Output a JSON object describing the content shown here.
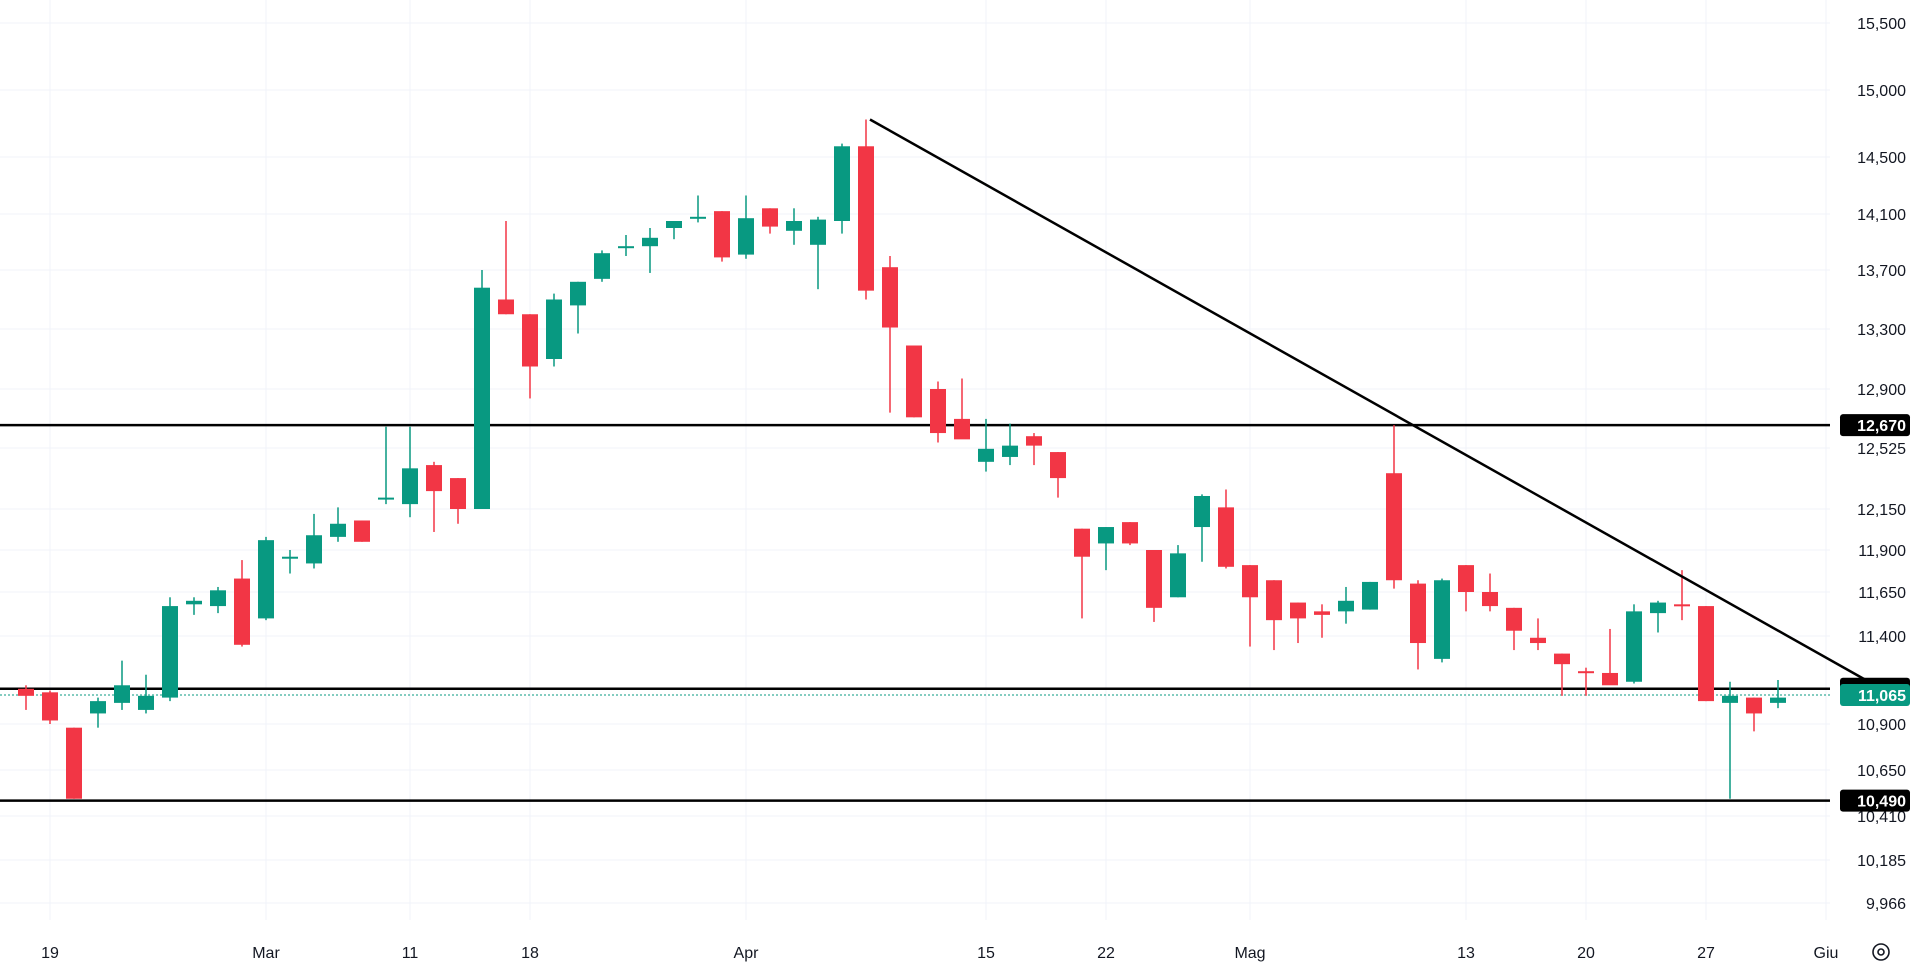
{
  "chart_data": {
    "type": "candlestick",
    "title": "",
    "xlabel": "",
    "ylabel": "",
    "y_ticks": [
      "15,500",
      "15,000",
      "14,500",
      "14,100",
      "13,700",
      "13,300",
      "12,900",
      "12,525",
      "12,150",
      "11,900",
      "11,650",
      "11,400",
      "10,900",
      "10,650",
      "10,410",
      "10,185",
      "9,966"
    ],
    "x_ticks": [
      "19",
      "Mar",
      "11",
      "18",
      "Apr",
      "15",
      "22",
      "Mag",
      "13",
      "20",
      "27",
      "Giu"
    ],
    "colors": {
      "up": "#089981",
      "down": "#f23645",
      "line": "#000000",
      "grid": "#f0f3fa"
    },
    "candles": [
      {
        "date": "Feb 16",
        "o": 11100,
        "h": 11120,
        "l": 10980,
        "c": 11060
      },
      {
        "date": "Feb 19",
        "o": 11080,
        "h": 11090,
        "l": 10900,
        "c": 10920
      },
      {
        "date": "Feb 20",
        "o": 10880,
        "h": 10880,
        "l": 10500,
        "c": 10500
      },
      {
        "date": "Feb 21",
        "o": 10960,
        "h": 11050,
        "l": 10880,
        "c": 11030
      },
      {
        "date": "Feb 22",
        "o": 11020,
        "h": 11260,
        "l": 10980,
        "c": 11120
      },
      {
        "date": "Feb 23",
        "o": 10980,
        "h": 11180,
        "l": 10960,
        "c": 11060
      },
      {
        "date": "Feb 26",
        "o": 11050,
        "h": 11620,
        "l": 11030,
        "c": 11570
      },
      {
        "date": "Feb 27",
        "o": 11580,
        "h": 11620,
        "l": 11520,
        "c": 11600
      },
      {
        "date": "Feb 28",
        "o": 11570,
        "h": 11680,
        "l": 11530,
        "c": 11660
      },
      {
        "date": "Feb 29",
        "o": 11730,
        "h": 11840,
        "l": 11340,
        "c": 11350
      },
      {
        "date": "Mar 1",
        "o": 11500,
        "h": 11980,
        "l": 11490,
        "c": 11960
      },
      {
        "date": "Mar 4",
        "o": 11860,
        "h": 11900,
        "l": 11760,
        "c": 11860
      },
      {
        "date": "Mar 5",
        "o": 11820,
        "h": 12120,
        "l": 11790,
        "c": 11990
      },
      {
        "date": "Mar 6",
        "o": 11980,
        "h": 12160,
        "l": 11950,
        "c": 12060
      },
      {
        "date": "Mar 7",
        "o": 12080,
        "h": 12080,
        "l": 11950,
        "c": 11950
      },
      {
        "date": "Mar 8",
        "o": 12220,
        "h": 12660,
        "l": 12180,
        "c": 12220
      },
      {
        "date": "Mar 11",
        "o": 12180,
        "h": 12660,
        "l": 12100,
        "c": 12400
      },
      {
        "date": "Mar 12",
        "o": 12420,
        "h": 12440,
        "l": 12010,
        "c": 12260
      },
      {
        "date": "Mar 13",
        "o": 12340,
        "h": 12340,
        "l": 12060,
        "c": 12150
      },
      {
        "date": "Mar 14",
        "o": 12150,
        "h": 13700,
        "l": 12150,
        "c": 13580
      },
      {
        "date": "Mar 15",
        "o": 13500,
        "h": 14050,
        "l": 13400,
        "c": 13400
      },
      {
        "date": "Mar 18",
        "o": 13400,
        "h": 13400,
        "l": 12840,
        "c": 13050
      },
      {
        "date": "Mar 19",
        "o": 13100,
        "h": 13540,
        "l": 13050,
        "c": 13500
      },
      {
        "date": "Mar 20",
        "o": 13460,
        "h": 13620,
        "l": 13270,
        "c": 13620
      },
      {
        "date": "Mar 21",
        "o": 13640,
        "h": 13840,
        "l": 13620,
        "c": 13820
      },
      {
        "date": "Mar 22",
        "o": 13860,
        "h": 13950,
        "l": 13800,
        "c": 13870
      },
      {
        "date": "Mar 25",
        "o": 13870,
        "h": 14000,
        "l": 13680,
        "c": 13930
      },
      {
        "date": "Mar 26",
        "o": 14000,
        "h": 14040,
        "l": 13920,
        "c": 14050
      },
      {
        "date": "Mar 27",
        "o": 14080,
        "h": 14230,
        "l": 14040,
        "c": 14080
      },
      {
        "date": "Mar 28",
        "o": 14120,
        "h": 14120,
        "l": 13760,
        "c": 13790
      },
      {
        "date": "Apr 1",
        "o": 13810,
        "h": 14230,
        "l": 13780,
        "c": 14070
      },
      {
        "date": "Apr 2",
        "o": 14140,
        "h": 14140,
        "l": 13960,
        "c": 14010
      },
      {
        "date": "Apr 3",
        "o": 13980,
        "h": 14140,
        "l": 13880,
        "c": 14050
      },
      {
        "date": "Apr 4",
        "o": 13880,
        "h": 14080,
        "l": 13570,
        "c": 14060
      },
      {
        "date": "Apr 5",
        "o": 14050,
        "h": 14600,
        "l": 13960,
        "c": 14580
      },
      {
        "date": "Apr 8",
        "o": 14580,
        "h": 14780,
        "l": 13500,
        "c": 13560
      },
      {
        "date": "Apr 9",
        "o": 13720,
        "h": 13800,
        "l": 12750,
        "c": 13310
      },
      {
        "date": "Apr 10",
        "o": 13190,
        "h": 13190,
        "l": 12720,
        "c": 12720
      },
      {
        "date": "Apr 11",
        "o": 12900,
        "h": 12950,
        "l": 12560,
        "c": 12620
      },
      {
        "date": "Apr 12",
        "o": 12710,
        "h": 12970,
        "l": 12590,
        "c": 12580
      },
      {
        "date": "Apr 15",
        "o": 12440,
        "h": 12710,
        "l": 12380,
        "c": 12520
      },
      {
        "date": "Apr 16",
        "o": 12470,
        "h": 12680,
        "l": 12420,
        "c": 12540
      },
      {
        "date": "Apr 17",
        "o": 12600,
        "h": 12620,
        "l": 12420,
        "c": 12540
      },
      {
        "date": "Apr 18",
        "o": 12500,
        "h": 12500,
        "l": 12220,
        "c": 12340
      },
      {
        "date": "Apr 22",
        "o": 12030,
        "h": 12030,
        "l": 11500,
        "c": 11860
      },
      {
        "date": "Apr 23",
        "o": 11940,
        "h": 12040,
        "l": 11780,
        "c": 12040
      },
      {
        "date": "Apr 24",
        "o": 12070,
        "h": 12070,
        "l": 11930,
        "c": 11940
      },
      {
        "date": "Apr 25",
        "o": 11900,
        "h": 11900,
        "l": 11480,
        "c": 11560
      },
      {
        "date": "Apr 26",
        "o": 11620,
        "h": 11930,
        "l": 11620,
        "c": 11880
      },
      {
        "date": "Apr 29",
        "o": 12040,
        "h": 12240,
        "l": 11830,
        "c": 12230
      },
      {
        "date": "Apr 30",
        "o": 12160,
        "h": 12270,
        "l": 11790,
        "c": 11800
      },
      {
        "date": "May 2",
        "o": 11810,
        "h": 11810,
        "l": 11340,
        "c": 11620
      },
      {
        "date": "May 3",
        "o": 11720,
        "h": 11720,
        "l": 11320,
        "c": 11490
      },
      {
        "date": "May 6",
        "o": 11590,
        "h": 11590,
        "l": 11360,
        "c": 11500
      },
      {
        "date": "May 7",
        "o": 11540,
        "h": 11580,
        "l": 11390,
        "c": 11520
      },
      {
        "date": "May 8",
        "o": 11540,
        "h": 11680,
        "l": 11470,
        "c": 11600
      },
      {
        "date": "May 9",
        "o": 11550,
        "h": 11710,
        "l": 11550,
        "c": 11710
      },
      {
        "date": "May 10",
        "o": 12370,
        "h": 12670,
        "l": 11670,
        "c": 11720
      },
      {
        "date": "May 13",
        "o": 11700,
        "h": 11720,
        "l": 11210,
        "c": 11360
      },
      {
        "date": "May 14",
        "o": 11270,
        "h": 11730,
        "l": 11250,
        "c": 11720
      },
      {
        "date": "May 15",
        "o": 11810,
        "h": 11810,
        "l": 11540,
        "c": 11650
      },
      {
        "date": "May 16",
        "o": 11650,
        "h": 11760,
        "l": 11540,
        "c": 11570
      },
      {
        "date": "May 17",
        "o": 11560,
        "h": 11560,
        "l": 11320,
        "c": 11430
      },
      {
        "date": "May 20",
        "o": 11390,
        "h": 11500,
        "l": 11320,
        "c": 11360
      },
      {
        "date": "May 21",
        "o": 11300,
        "h": 11300,
        "l": 11060,
        "c": 11240
      },
      {
        "date": "May 22",
        "o": 11200,
        "h": 11220,
        "l": 11060,
        "c": 11190
      },
      {
        "date": "May 23",
        "o": 11190,
        "h": 11440,
        "l": 11130,
        "c": 11120
      },
      {
        "date": "May 24",
        "o": 11140,
        "h": 11580,
        "l": 11130,
        "c": 11540
      },
      {
        "date": "May 27",
        "o": 11530,
        "h": 11600,
        "l": 11420,
        "c": 11590
      },
      {
        "date": "May 28",
        "o": 11580,
        "h": 11780,
        "l": 11490,
        "c": 11570
      },
      {
        "date": "May 29",
        "o": 11570,
        "h": 11570,
        "l": 11030,
        "c": 11030
      },
      {
        "date": "May 30",
        "o": 11020,
        "h": 11140,
        "l": 10500,
        "c": 11060
      },
      {
        "date": "May 31",
        "o": 11050,
        "h": 11050,
        "l": 10860,
        "c": 10960
      },
      {
        "date": "Jun 3",
        "o": 11020,
        "h": 11150,
        "l": 10990,
        "c": 11050
      }
    ],
    "horizontal_lines": [
      {
        "value": 12670,
        "label": "12,670"
      },
      {
        "value": 11100,
        "label": "11,100"
      },
      {
        "value": 10490,
        "label": "10,490"
      }
    ],
    "last_price": {
      "value": 11065,
      "label": "11,065"
    },
    "trendline": {
      "from": {
        "date": "Apr 8",
        "value": 14780
      },
      "to": {
        "date": "Jun 5",
        "value": 11130
      }
    }
  }
}
